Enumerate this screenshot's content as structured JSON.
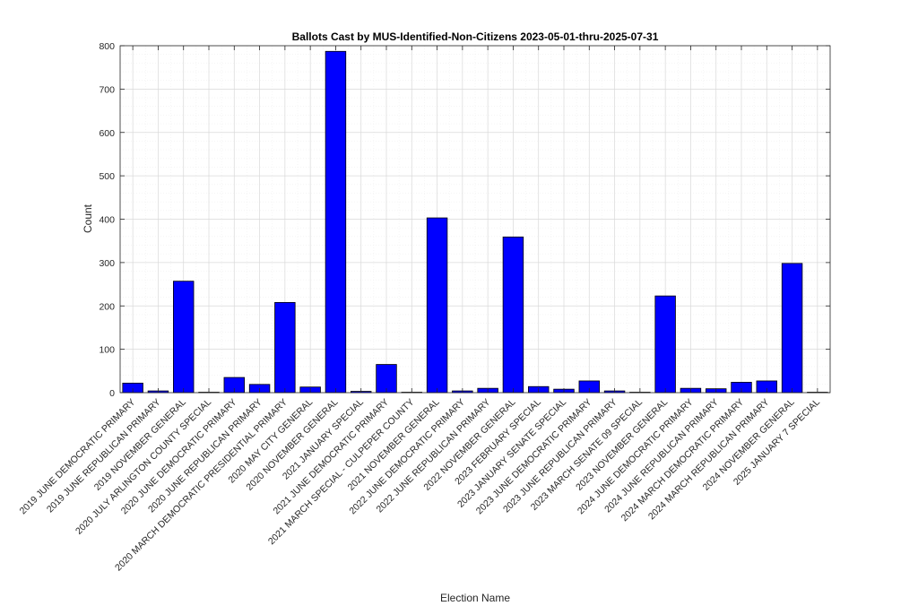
{
  "colors": {
    "bar_fill": "#0000ff",
    "bar_edge": "#000000",
    "axis": "#262626",
    "major_grid": "#d9d9d9",
    "minor_grid": "#efefef",
    "background": "#ffffff"
  },
  "chart_data": {
    "type": "bar",
    "title": "Ballots Cast by MUS-Identified-Non-Citizens 2023-05-01-thru-2025-07-31",
    "xlabel": "Election Name",
    "ylabel": "Count",
    "ylim": [
      0,
      800
    ],
    "yticks": [
      "0",
      "100",
      "200",
      "300",
      "400",
      "500",
      "600",
      "700",
      "800"
    ],
    "grid": true,
    "minor_grid": true,
    "legend": "none",
    "categories": [
      "2019 JUNE DEMOCRATIC PRIMARY",
      "2019 JUNE REPUBLICAN PRIMARY",
      "2019 NOVEMBER GENERAL",
      "2020 JULY ARLINGTON COUNTY SPECIAL",
      "2020 JUNE DEMOCRATIC PRIMARY",
      "2020 JUNE REPUBLICAN PRIMARY",
      "2020 MARCH DEMOCRATIC PRESIDENTIAL PRIMARY",
      "2020 MAY CITY GENERAL",
      "2020 NOVEMBER GENERAL",
      "2021 JANUARY SPECIAL",
      "2021 JUNE DEMOCRATIC PRIMARY",
      "2021 MARCH SPECIAL - CULPEPER COUNTY",
      "2021 NOVEMBER GENERAL",
      "2022 JUNE DEMOCRATIC PRIMARY",
      "2022 JUNE REPUBLICAN PRIMARY",
      "2022 NOVEMBER GENERAL",
      "2023 FEBRUARY SPECIAL",
      "2023 JANUARY SENATE SPECIAL",
      "2023 JUNE DEMOCRATIC PRIMARY",
      "2023 JUNE REPUBLICAN PRIMARY",
      "2023 MARCH SENATE 09 SPECIAL",
      "2023 NOVEMBER GENERAL",
      "2024 JUNE DEMOCRATIC PRIMARY",
      "2024 JUNE REPUBLICAN PRIMARY",
      "2024 MARCH DEMOCRATIC PRIMARY",
      "2024 MARCH REPUBLICAN PRIMARY",
      "2024 NOVEMBER GENERAL",
      "2025 JANUARY 7 SPECIAL"
    ],
    "values": [
      22,
      4,
      257,
      1,
      35,
      19,
      208,
      13,
      787,
      3,
      65,
      1,
      403,
      4,
      10,
      359,
      14,
      8,
      27,
      4,
      1,
      223,
      10,
      9,
      24,
      27,
      298,
      1
    ]
  }
}
